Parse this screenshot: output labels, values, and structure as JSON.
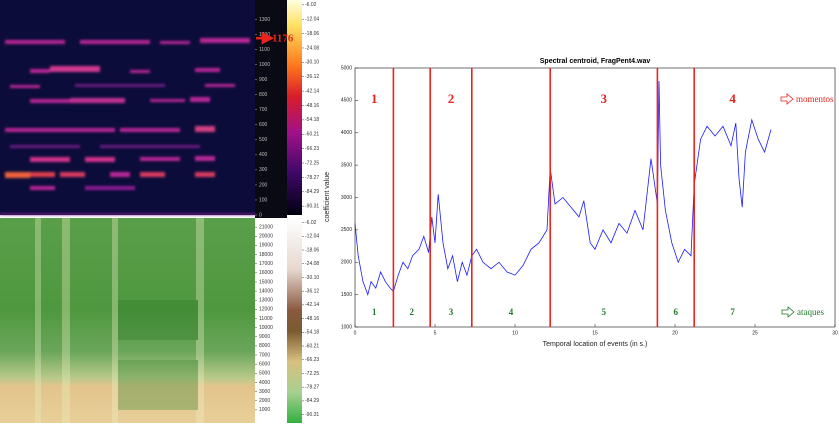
{
  "chart_data": [
    {
      "type": "spectrogram",
      "ylim": [
        0,
        1430
      ],
      "yticks": [
        0,
        100,
        200,
        300,
        400,
        500,
        600,
        700,
        800,
        900,
        1000,
        1100,
        1200,
        1300
      ],
      "clim": [
        -94,
        -4
      ],
      "colorbar_ticks": [
        -6.02,
        -12.04,
        -18.06,
        -24.08,
        {
          "value": -30.1,
          "label": "-30.10"
        },
        -36.12,
        -42.14,
        -48.16,
        -54.18,
        -60.21,
        -66.23,
        -72.25,
        -78.27,
        -84.29,
        -90.31
      ],
      "marker": 1176,
      "marker_color": "#e8241c"
    },
    {
      "type": "spectrogram",
      "ylim": [
        0,
        22000
      ],
      "yticks": [
        1000,
        2000,
        3000,
        4000,
        5000,
        6000,
        7000,
        8000,
        9000,
        10000,
        11000,
        12000,
        13000,
        14000,
        15000,
        16000,
        17000,
        18000,
        19000,
        20000,
        21000
      ],
      "clim": [
        -94,
        -4
      ],
      "colorbar_ticks": [
        -6.02,
        -12.04,
        -18.06,
        -24.08,
        {
          "value": -30.1,
          "label": "-30.10"
        },
        -36.12,
        -42.14,
        -48.16,
        -54.18,
        -60.21,
        -66.23,
        -72.25,
        -78.27,
        -84.29,
        -90.31
      ]
    },
    {
      "type": "line",
      "title": "Spectral centroid, FragPent4.wav",
      "x_label": "Temporal location of events (in s.)",
      "y_label": "coefficient value",
      "xlim": [
        0,
        30
      ],
      "xticks": [
        0,
        5,
        10,
        15,
        20,
        25,
        30
      ],
      "ylim": [
        1000,
        5000
      ],
      "yticks": [
        1000,
        1500,
        2000,
        2500,
        3000,
        3500,
        4000,
        4500,
        5000
      ],
      "color": "#1a1aff",
      "x": [
        0.0,
        0.2,
        0.5,
        0.8,
        1.0,
        1.3,
        1.6,
        1.9,
        2.2,
        2.4,
        2.7,
        3.0,
        3.3,
        3.6,
        4.0,
        4.3,
        4.6,
        4.8,
        5.0,
        5.2,
        5.5,
        5.8,
        6.1,
        6.4,
        6.7,
        7.0,
        7.3,
        7.6,
        8.0,
        8.5,
        9.0,
        9.5,
        10.0,
        10.5,
        11.0,
        11.5,
        12.0,
        12.2,
        12.5,
        13.0,
        13.5,
        14.0,
        14.3,
        14.7,
        15.0,
        15.5,
        16.0,
        16.5,
        17.0,
        17.5,
        18.0,
        18.5,
        18.9,
        19.0,
        19.1,
        19.4,
        19.8,
        20.2,
        20.6,
        21.0,
        21.2,
        21.6,
        22.0,
        22.5,
        23.0,
        23.5,
        23.8,
        24.0,
        24.2,
        24.4,
        24.8,
        25.2,
        25.6,
        26.0
      ],
      "values": [
        2600,
        2100,
        1700,
        1500,
        1700,
        1600,
        1850,
        1700,
        1600,
        1550,
        1800,
        2000,
        1900,
        2100,
        2200,
        2400,
        2150,
        2700,
        2300,
        3050,
        2300,
        1900,
        2100,
        1700,
        2000,
        1800,
        2100,
        2200,
        2000,
        1900,
        2000,
        1850,
        1800,
        1950,
        2200,
        2300,
        2500,
        3450,
        2900,
        3000,
        2850,
        2700,
        2950,
        2300,
        2200,
        2500,
        2300,
        2600,
        2450,
        2800,
        2500,
        3600,
        2900,
        4800,
        3500,
        2800,
        2300,
        2000,
        2200,
        2100,
        3200,
        3900,
        4100,
        3950,
        4100,
        3800,
        4150,
        3300,
        2850,
        3700,
        4200,
        3900,
        3700,
        4050
      ],
      "boundaries": [
        2.4,
        4.7,
        7.3,
        12.2,
        18.9,
        21.2
      ],
      "boundary_color": "#e8241c",
      "momentos": {
        "label": "momentos",
        "color": "#e8241c",
        "segments": [
          "1",
          "2",
          "3",
          "4"
        ]
      },
      "ataques": {
        "label": "ataques",
        "color": "#1f7a2a",
        "segments": [
          "1",
          "2",
          "3",
          "4",
          "5",
          "6",
          "7"
        ]
      }
    }
  ]
}
